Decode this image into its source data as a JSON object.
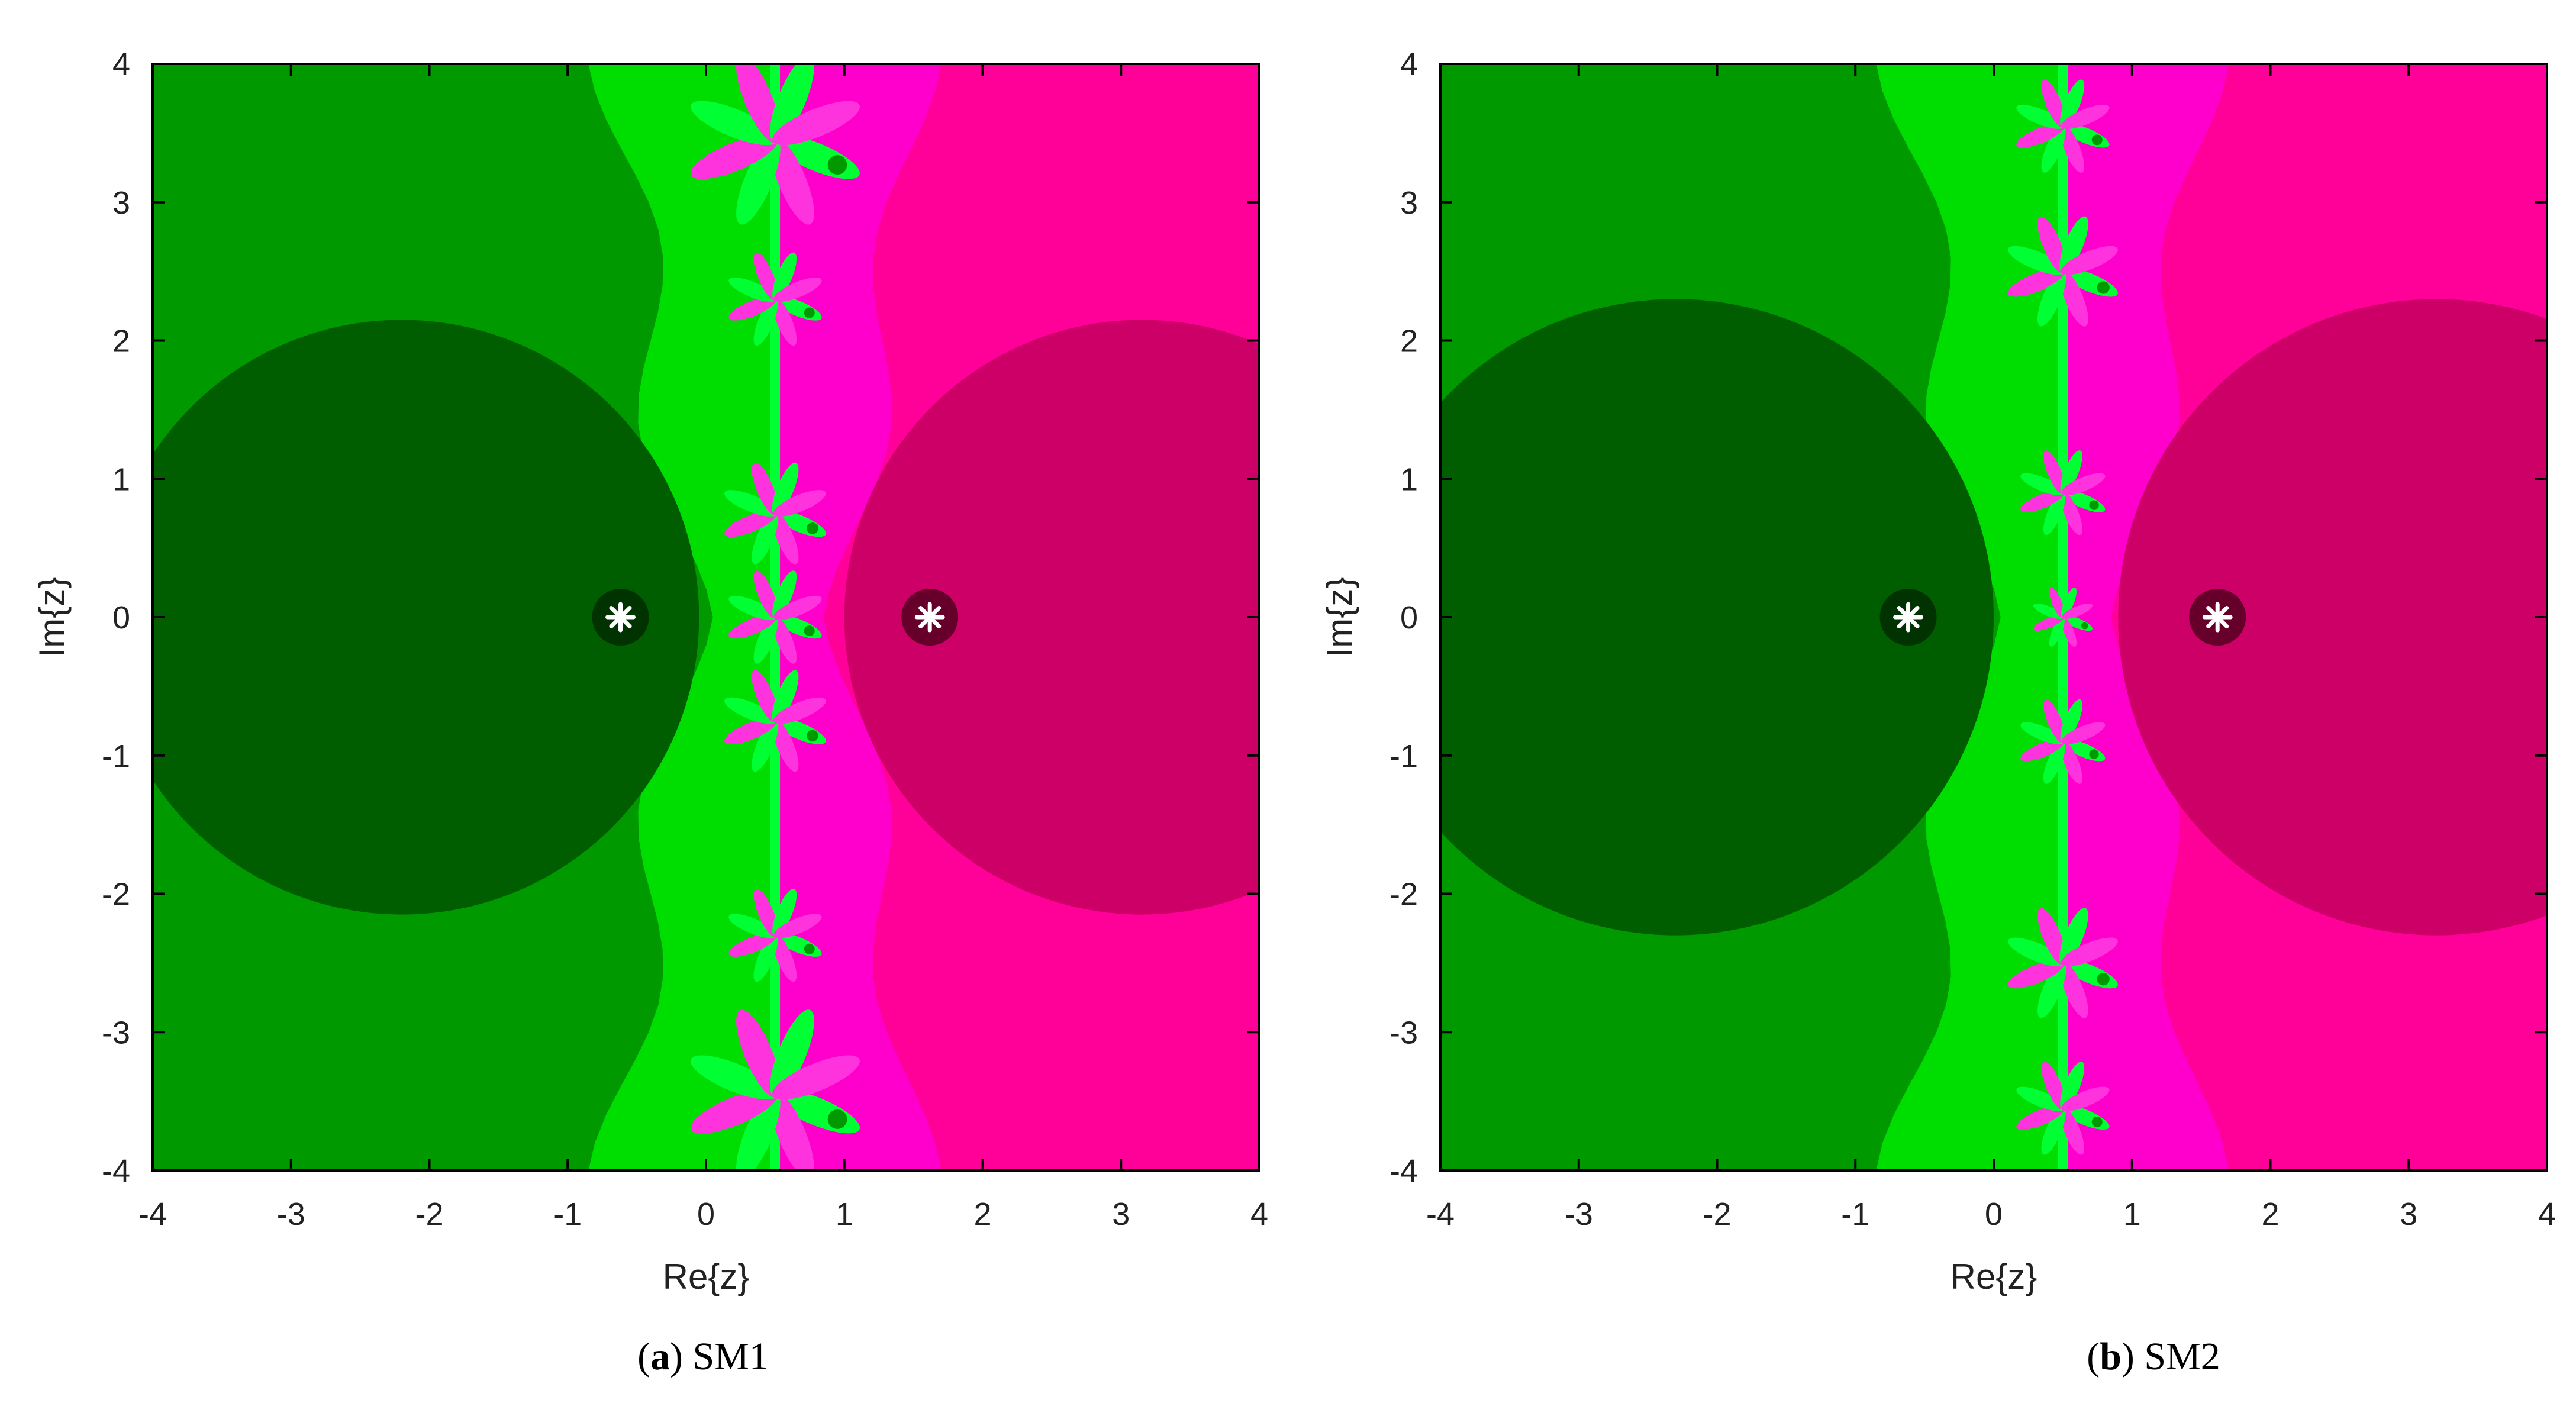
{
  "chart_data": [
    {
      "type": "heatmap",
      "subtitle_letter": "a",
      "subtitle_text": "SM1",
      "xlabel": "Re{z}",
      "ylabel": "Im{z}",
      "xlim": [
        -4,
        4
      ],
      "ylim": [
        -4,
        4
      ],
      "xticks": [
        -4,
        -3,
        -2,
        -1,
        0,
        1,
        2,
        3,
        4
      ],
      "yticks": [
        -4,
        -3,
        -2,
        -1,
        0,
        1,
        2,
        3,
        4
      ],
      "roots": [
        {
          "re": -0.618,
          "im": 0
        },
        {
          "re": 1.618,
          "im": 0
        }
      ],
      "root_marker": "asterisk",
      "basins": {
        "left_root_fast": {
          "center_re": -2.2,
          "radius": 2.15,
          "color": "#005e00"
        },
        "right_root_fast": {
          "center_re": 3.15,
          "radius": 2.15,
          "color": "#cc0066"
        }
      },
      "boundary_re": 0.5,
      "blooms": [
        {
          "re": 0.5,
          "im": 3.45,
          "scale": 1.0
        },
        {
          "re": 0.5,
          "im": 2.3,
          "scale": 0.55
        },
        {
          "re": 0.5,
          "im": 0.75,
          "scale": 0.6
        },
        {
          "re": 0.5,
          "im": 0.0,
          "scale": 0.55
        },
        {
          "re": 0.5,
          "im": -0.75,
          "scale": 0.6
        },
        {
          "re": 0.5,
          "im": -2.3,
          "scale": 0.55
        },
        {
          "re": 0.5,
          "im": -3.45,
          "scale": 1.0
        }
      ]
    },
    {
      "type": "heatmap",
      "subtitle_letter": "b",
      "subtitle_text": "SM2",
      "xlabel": "Re{z}",
      "ylabel": "Im{z}",
      "xlim": [
        -4,
        4
      ],
      "ylim": [
        -4,
        4
      ],
      "xticks": [
        -4,
        -3,
        -2,
        -1,
        0,
        1,
        2,
        3,
        4
      ],
      "yticks": [
        -4,
        -3,
        -2,
        -1,
        0,
        1,
        2,
        3,
        4
      ],
      "roots": [
        {
          "re": -0.618,
          "im": 0
        },
        {
          "re": 1.618,
          "im": 0
        }
      ],
      "root_marker": "asterisk",
      "basins": {
        "left_root_fast": {
          "center_re": -2.3,
          "radius": 2.3,
          "color": "#005e00"
        },
        "right_root_fast": {
          "center_re": 3.2,
          "radius": 2.3,
          "color": "#cc0066"
        }
      },
      "boundary_re": 0.5,
      "blooms": [
        {
          "re": 0.5,
          "im": 3.55,
          "scale": 0.55
        },
        {
          "re": 0.5,
          "im": 2.5,
          "scale": 0.65
        },
        {
          "re": 0.5,
          "im": 0.9,
          "scale": 0.5
        },
        {
          "re": 0.5,
          "im": 0.0,
          "scale": 0.35
        },
        {
          "re": 0.5,
          "im": -0.9,
          "scale": 0.5
        },
        {
          "re": 0.5,
          "im": -2.5,
          "scale": 0.65
        },
        {
          "re": 0.5,
          "im": -3.55,
          "scale": 0.55
        }
      ]
    }
  ],
  "palette": {
    "green_far": "#009900",
    "green_near": "#00dd00",
    "green_bright": "#00ff33",
    "pink_far": "#ff0099",
    "pink_near": "#ff00cc",
    "pink_bright": "#ff33dd",
    "root_halo_left": "#003300",
    "root_halo_right": "#66002b",
    "root_star": "#ffffff",
    "axis": "#000000"
  }
}
